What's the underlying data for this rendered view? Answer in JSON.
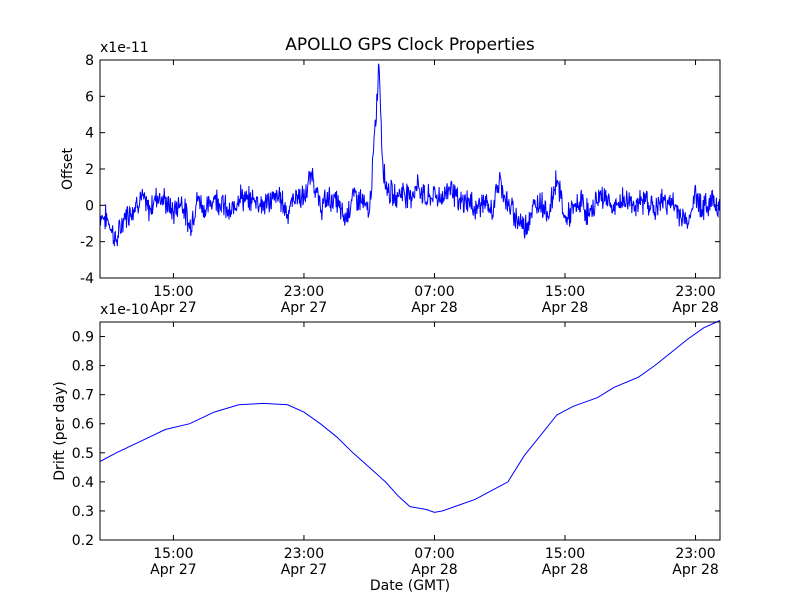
{
  "chart_data": [
    {
      "type": "line",
      "title": "APOLLO GPS Clock Properties",
      "ylabel": "Offset",
      "xlabel": "",
      "y_multiplier": "x1e-11",
      "ylim": [
        -4,
        8
      ],
      "yticks": [
        "-4",
        "-2",
        "0",
        "2",
        "4",
        "6",
        "8"
      ],
      "xlim_hours": [
        10.5,
        48.5
      ],
      "xticks": [
        {
          "hour": 15,
          "time": "15:00",
          "date": "Apr 27"
        },
        {
          "hour": 23,
          "time": "23:00",
          "date": "Apr 27"
        },
        {
          "hour": 31,
          "time": "07:00",
          "date": "Apr 28"
        },
        {
          "hour": 39,
          "time": "15:00",
          "date": "Apr 28"
        },
        {
          "hour": 47,
          "time": "23:00",
          "date": "Apr 28"
        }
      ],
      "series": [
        {
          "color": "#0000ff",
          "x_hours": [
            10.5,
            11.0,
            11.5,
            12.0,
            12.5,
            13.0,
            13.5,
            14.0,
            14.5,
            15.0,
            15.5,
            16.0,
            16.5,
            17.0,
            17.5,
            18.0,
            18.5,
            19.0,
            19.5,
            20.0,
            20.5,
            21.0,
            21.5,
            22.0,
            22.5,
            23.0,
            23.5,
            24.0,
            24.5,
            25.0,
            25.5,
            26.0,
            26.5,
            27.0,
            27.2,
            27.4,
            27.6,
            27.8,
            28.0,
            28.5,
            29.0,
            29.5,
            30.0,
            30.5,
            31.0,
            31.5,
            32.0,
            32.5,
            33.0,
            33.5,
            34.0,
            34.5,
            35.0,
            35.5,
            36.0,
            36.5,
            37.0,
            37.5,
            38.0,
            38.5,
            39.0,
            39.5,
            40.0,
            40.5,
            41.0,
            41.5,
            42.0,
            42.5,
            43.0,
            43.5,
            44.0,
            44.5,
            45.0,
            45.5,
            46.0,
            46.5,
            47.0,
            47.5,
            48.0,
            48.5
          ],
          "values": [
            -0.5,
            -0.8,
            -2.0,
            -0.6,
            -0.2,
            0.5,
            -0.3,
            0.6,
            0.2,
            -0.4,
            0.3,
            -1.2,
            0.4,
            -0.3,
            0.5,
            0.1,
            -0.6,
            0.6,
            0.2,
            0.4,
            0.0,
            0.3,
            0.5,
            -0.4,
            0.6,
            0.3,
            1.8,
            -0.2,
            0.4,
            0.2,
            -0.8,
            0.5,
            0.3,
            -0.5,
            2.0,
            4.6,
            8.0,
            2.8,
            1.2,
            0.4,
            0.8,
            0.5,
            1.1,
            0.3,
            0.6,
            0.4,
            1.2,
            0.0,
            0.3,
            -0.2,
            0.2,
            -0.4,
            1.4,
            0.0,
            -0.6,
            -1.2,
            -0.3,
            0.3,
            -0.5,
            1.6,
            -0.8,
            -0.3,
            0.2,
            -0.6,
            0.4,
            0.5,
            -0.3,
            0.3,
            0.2,
            0.0,
            0.4,
            -0.3,
            0.3,
            0.1,
            -0.4,
            -1.0,
            0.6,
            -0.2,
            0.3,
            0.0
          ]
        }
      ]
    },
    {
      "type": "line",
      "title": "",
      "ylabel": "Drift (per day)",
      "xlabel": "Date (GMT)",
      "y_multiplier": "x1e-10",
      "ylim": [
        0.2,
        0.95
      ],
      "yticks": [
        "0.2",
        "0.3",
        "0.4",
        "0.5",
        "0.6",
        "0.7",
        "0.8",
        "0.9"
      ],
      "xlim_hours": [
        10.5,
        48.5
      ],
      "xticks": [
        {
          "hour": 15,
          "time": "15:00",
          "date": "Apr 27"
        },
        {
          "hour": 23,
          "time": "23:00",
          "date": "Apr 27"
        },
        {
          "hour": 31,
          "time": "07:00",
          "date": "Apr 28"
        },
        {
          "hour": 39,
          "time": "15:00",
          "date": "Apr 28"
        },
        {
          "hour": 47,
          "time": "23:00",
          "date": "Apr 28"
        }
      ],
      "series": [
        {
          "color": "#0000ff",
          "x_hours": [
            10.5,
            11.5,
            13.0,
            14.5,
            16.0,
            17.5,
            19.0,
            20.5,
            22.0,
            23.0,
            24.0,
            25.0,
            26.0,
            27.0,
            28.0,
            28.8,
            29.5,
            30.5,
            31.0,
            31.5,
            32.5,
            33.5,
            34.5,
            35.5,
            36.5,
            37.5,
            38.5,
            39.0,
            39.5,
            41.0,
            42.0,
            43.5,
            44.5,
            45.5,
            46.5,
            47.5,
            48.5
          ],
          "values": [
            0.47,
            0.5,
            0.54,
            0.58,
            0.6,
            0.64,
            0.665,
            0.67,
            0.665,
            0.64,
            0.6,
            0.555,
            0.5,
            0.45,
            0.4,
            0.35,
            0.315,
            0.305,
            0.295,
            0.3,
            0.32,
            0.34,
            0.37,
            0.4,
            0.49,
            0.56,
            0.63,
            0.645,
            0.66,
            0.69,
            0.725,
            0.76,
            0.8,
            0.845,
            0.89,
            0.93,
            0.955
          ]
        }
      ]
    }
  ]
}
